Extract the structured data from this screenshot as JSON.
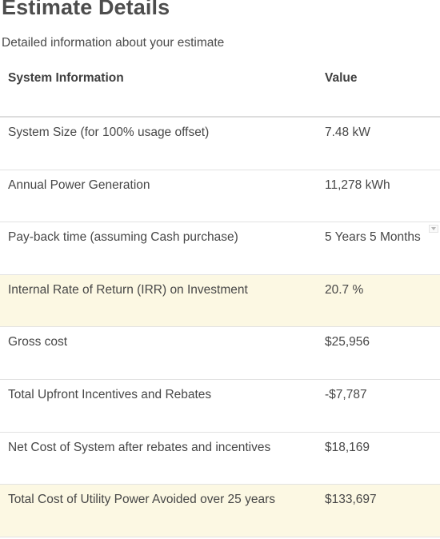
{
  "page": {
    "title": "Estimate Details",
    "subtitle": "Detailed information about your estimate"
  },
  "table": {
    "headers": {
      "label": "System Information",
      "value": "Value"
    },
    "rows": [
      {
        "label": "System Size (for 100% usage offset)",
        "value": "7.48 kW",
        "highlighted": false
      },
      {
        "label": "Annual Power Generation",
        "value": "11,278 kWh",
        "highlighted": false
      },
      {
        "label": "Pay-back time (assuming Cash purchase)",
        "value": "5 Years 5 Months",
        "highlighted": false
      },
      {
        "label": "Internal Rate of Return (IRR) on Investment",
        "value": "20.7 %",
        "highlighted": true
      },
      {
        "label": "Gross cost",
        "value": "$25,956",
        "highlighted": false
      },
      {
        "label": "Total Upfront Incentives and Rebates",
        "value": "-$7,787",
        "highlighted": false
      },
      {
        "label": "Net Cost of System after rebates and incentives",
        "value": "$18,169",
        "highlighted": false
      },
      {
        "label": "Total Cost of Utility Power Avoided over 25 years",
        "value": "$133,697",
        "highlighted": true
      }
    ]
  },
  "colors": {
    "highlight_background": "#fcf8e3",
    "row_divider": "#e2e2e2",
    "text": "#474747"
  },
  "icons": {
    "row_3_dropdown": "chevron-down-icon"
  }
}
